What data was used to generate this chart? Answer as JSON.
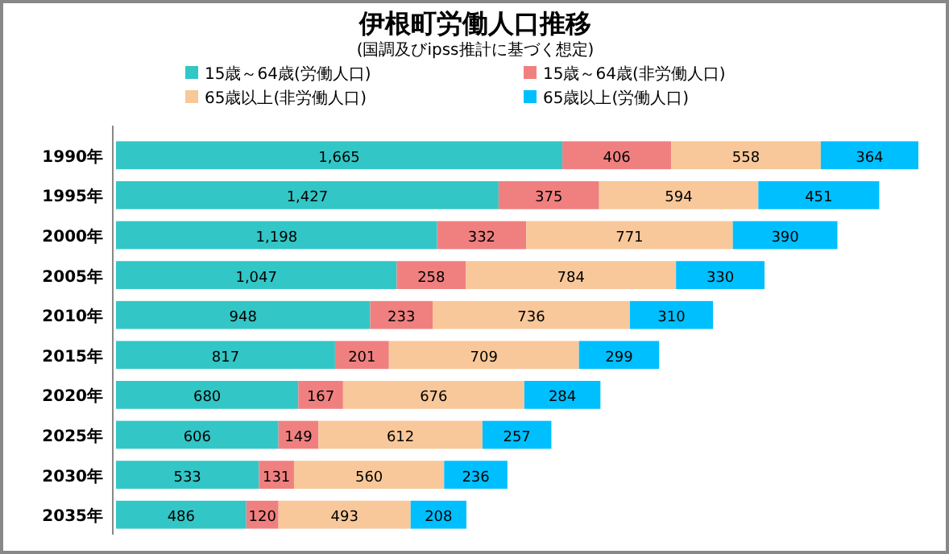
{
  "chart_data": {
    "type": "bar",
    "orientation": "horizontal",
    "stacked": true,
    "title": "伊根町労働人口推移",
    "subtitle": "(国調及びipss推計に基づく想定)",
    "categories": [
      "1990年",
      "1995年",
      "2000年",
      "2005年",
      "2010年",
      "2015年",
      "2020年",
      "2025年",
      "2030年",
      "2035年"
    ],
    "series": [
      {
        "name": "15歳～64歳(労働人口)",
        "color": "#33c6c6",
        "values": [
          1665,
          1427,
          1198,
          1047,
          948,
          817,
          680,
          606,
          533,
          486
        ],
        "value_labels": [
          "1,665",
          "1,427",
          "1,198",
          "1,047",
          "948",
          "817",
          "680",
          "606",
          "533",
          "486"
        ]
      },
      {
        "name": "15歳～64歳(非労働人口)",
        "color": "#f08080",
        "values": [
          406,
          375,
          332,
          258,
          233,
          201,
          167,
          149,
          131,
          120
        ],
        "value_labels": [
          "406",
          "375",
          "332",
          "258",
          "233",
          "201",
          "167",
          "149",
          "131",
          "120"
        ]
      },
      {
        "name": "65歳以上(非労働人口)",
        "color": "#f8c89a",
        "values": [
          558,
          594,
          771,
          784,
          736,
          709,
          676,
          612,
          560,
          493
        ],
        "value_labels": [
          "558",
          "594",
          "771",
          "784",
          "736",
          "709",
          "676",
          "612",
          "560",
          "493"
        ]
      },
      {
        "name": "65歳以上(労働人口)",
        "color": "#00bfff",
        "values": [
          364,
          451,
          390,
          330,
          310,
          299,
          284,
          257,
          236,
          208
        ],
        "value_labels": [
          "364",
          "451",
          "390",
          "330",
          "310",
          "299",
          "284",
          "257",
          "236",
          "208"
        ]
      }
    ],
    "legend": "top"
  }
}
